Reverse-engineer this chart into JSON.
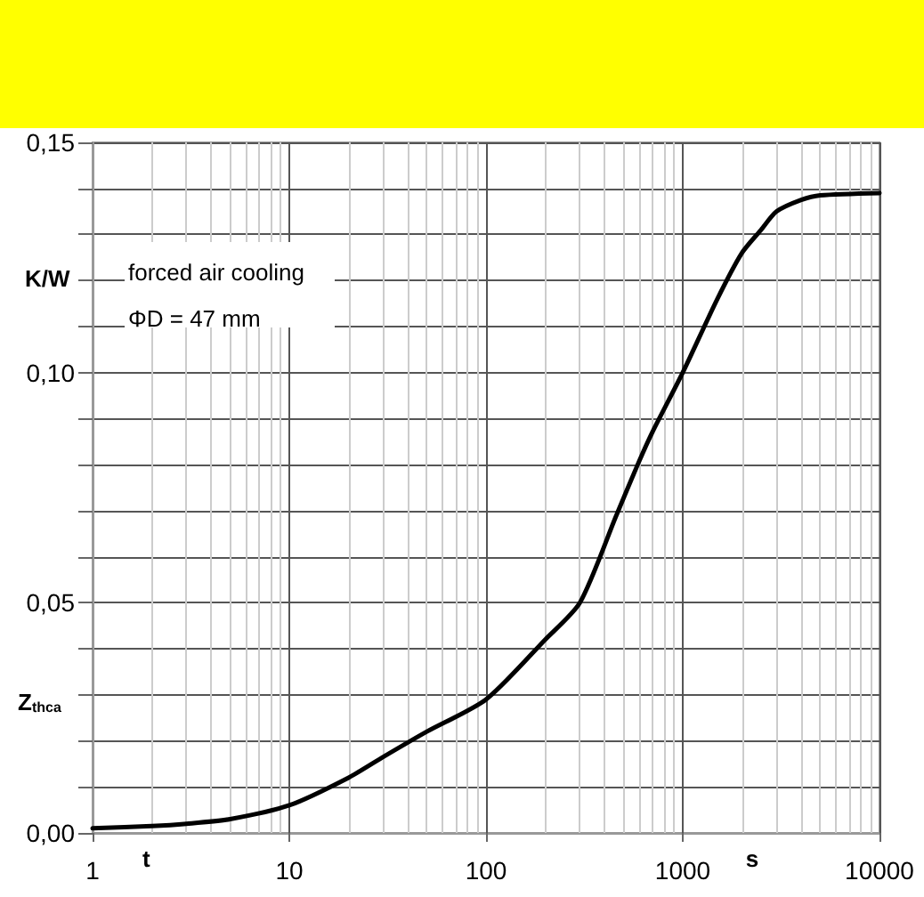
{
  "chart_data": {
    "type": "line",
    "xlabel": "t",
    "ylabel": "Z$_{thca}$",
    "annotations": [
      "K/W",
      "s",
      "forced air cooling",
      "ΦD = 47 mm"
    ],
    "x": [
      1,
      2,
      3,
      5,
      10,
      20,
      30,
      50,
      100,
      200,
      300,
      460,
      590,
      700,
      1000,
      1500,
      2000,
      2500,
      3000,
      4000,
      5000,
      10000
    ],
    "series": [
      {
        "color": "#000000",
        "values": [
          0.001,
          0.0015,
          0.002,
          0.003,
          0.006,
          0.012,
          0.0165,
          0.022,
          0.029,
          0.042,
          0.05,
          0.069,
          0.08,
          0.087,
          0.1,
          0.116,
          0.126,
          0.131,
          0.135,
          0.1375,
          0.1385,
          0.139
        ]
      }
    ],
    "log": "x",
    "xlim": [
      1,
      10000
    ],
    "xticks": [
      1,
      10,
      100,
      1000,
      10000
    ],
    "ylim": [
      0,
      0.15
    ],
    "yticks": [
      {
        "value": 0,
        "label": "0,00"
      },
      {
        "value": 0.01,
        "label": null
      },
      {
        "value": 0.02,
        "label": null
      },
      {
        "value": 0.03,
        "label": null
      },
      {
        "value": 0.04,
        "label": null
      },
      {
        "value": 0.05,
        "label": "0,05"
      },
      {
        "value": 0.06,
        "label": null
      },
      {
        "value": 0.07,
        "label": null
      },
      {
        "value": 0.08,
        "label": null
      },
      {
        "value": 0.09,
        "label": null
      },
      {
        "value": 0.1,
        "label": "0,10"
      },
      {
        "value": 0.11,
        "label": null
      },
      {
        "value": 0.12,
        "label": null
      },
      {
        "value": 0.13,
        "label": null
      },
      {
        "value": 0.14,
        "label": null
      },
      {
        "value": 0.15,
        "label": "0,15"
      }
    ],
    "grid": true,
    "marker": "none",
    "line_style": "solid"
  }
}
